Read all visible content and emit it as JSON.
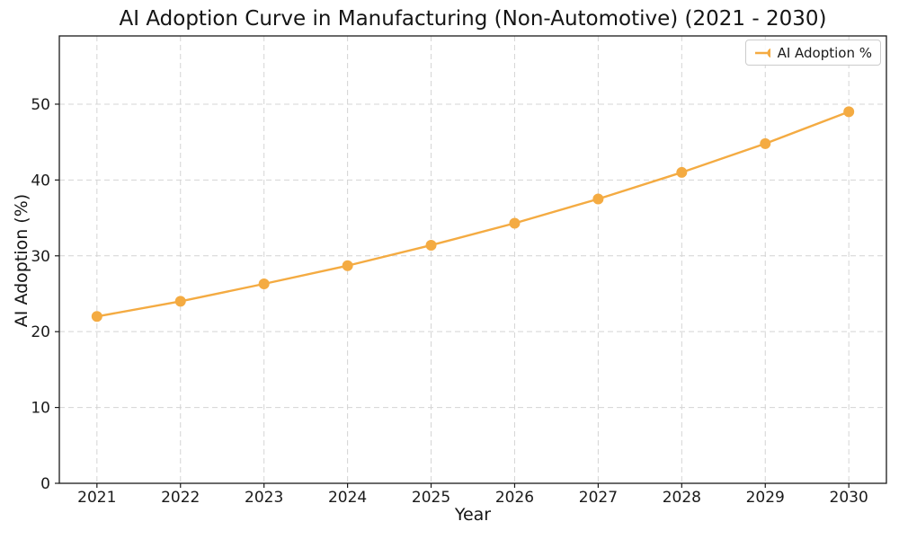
{
  "title": "AI Adoption Curve in Manufacturing (Non-Automotive) (2021 - 2030)",
  "chart_data": {
    "type": "line",
    "title": "AI Adoption Curve in Manufacturing (Non-Automotive) (2021 - 2030)",
    "xlabel": "Year",
    "ylabel": "AI Adoption (%)",
    "x": [
      2021,
      2022,
      2023,
      2024,
      2025,
      2026,
      2027,
      2028,
      2029,
      2030
    ],
    "xtick_labels": [
      "2021",
      "2022",
      "2023",
      "2024",
      "2025",
      "2026",
      "2027",
      "2028",
      "2029",
      "2030"
    ],
    "yticks": [
      0,
      10,
      20,
      30,
      40,
      50
    ],
    "ytick_labels": [
      "0",
      "10",
      "20",
      "30",
      "40",
      "50"
    ],
    "xlim": [
      2020.55,
      2030.45
    ],
    "ylim": [
      0,
      59
    ],
    "grid": true,
    "grid_style": "dashed",
    "series": [
      {
        "name": "AI Adoption %",
        "values": [
          22.0,
          24.0,
          26.3,
          28.7,
          31.4,
          34.3,
          37.5,
          41.0,
          44.8,
          49.0
        ],
        "color": "#F4AB42",
        "marker": "circle"
      }
    ],
    "legend": {
      "position": "upper right",
      "entries": [
        "AI Adoption %"
      ]
    },
    "colors": {
      "line": "#F4AB42",
      "grid": "#d4d4d4",
      "spine": "#1a1a1a",
      "text": "#1a1a1a",
      "background": "#ffffff",
      "legend_border": "#cccccc"
    }
  }
}
